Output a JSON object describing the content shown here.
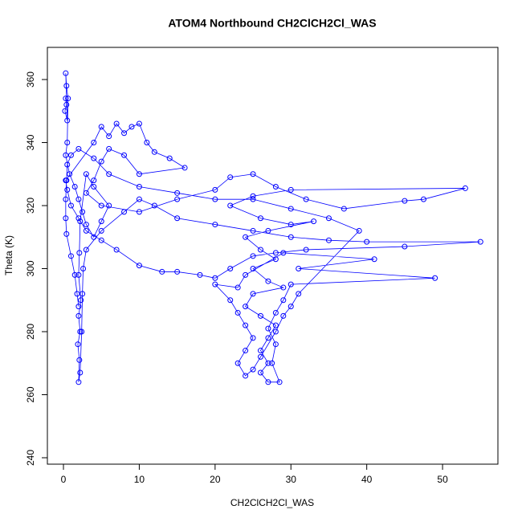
{
  "chart_data": {
    "type": "line",
    "markers": true,
    "title": "ATOM4 Northbound CH2ClCH2Cl_WAS",
    "xlabel": "CH2ClCH2Cl_WAS",
    "ylabel": "Theta (K)",
    "color": "#0000ff",
    "xlim": [
      -2.12,
      57.3
    ],
    "ylim": [
      237.96,
      370.2
    ],
    "xticks": [
      0,
      10,
      20,
      30,
      40,
      50
    ],
    "yticks": [
      240,
      260,
      280,
      300,
      320,
      340,
      360
    ],
    "x": [
      0.3,
      0.4,
      0.2,
      0.5,
      0.3,
      0.4,
      0.6,
      0.5,
      0.3,
      0.8,
      1.5,
      2,
      2.5,
      3,
      4,
      5,
      6,
      4,
      3,
      2.2,
      2.1,
      2,
      2.3,
      2,
      2.2,
      1.9,
      2.1,
      2.0,
      2.2,
      2.4,
      2.5,
      2.6,
      3,
      5,
      8,
      10,
      12,
      15,
      20,
      25,
      30,
      35,
      40,
      55,
      45,
      32,
      28,
      25,
      22,
      20,
      18,
      15,
      13,
      10,
      7,
      5,
      3,
      2,
      1,
      0.5,
      0.3,
      4,
      5,
      6,
      7,
      8,
      9,
      10,
      11,
      12,
      14,
      16,
      10,
      8,
      6,
      5,
      4,
      3,
      5,
      10,
      15,
      20,
      22,
      25,
      28,
      32,
      37,
      45,
      47.5,
      53,
      30,
      25,
      22,
      26,
      30,
      33,
      27,
      24,
      26,
      28,
      25,
      27,
      29,
      25,
      24,
      26,
      28,
      27,
      26,
      27,
      26,
      27,
      28.5,
      27.5,
      28,
      27,
      28,
      29,
      30,
      49,
      31,
      41,
      29,
      24,
      23,
      20,
      22,
      23,
      24,
      25,
      24,
      23,
      24,
      25,
      26,
      28,
      29,
      30,
      31,
      39,
      35,
      30,
      25,
      20,
      15,
      10,
      6,
      4,
      2,
      1,
      0.5,
      0.4,
      0.3,
      0.3,
      0.4,
      1,
      1.5,
      1.8,
      2
    ],
    "values": [
      354,
      352,
      350,
      347,
      362,
      358,
      354,
      340,
      336,
      330,
      326,
      322,
      318,
      314,
      310,
      315,
      320,
      326,
      330,
      315,
      305,
      298,
      290,
      285,
      280,
      276,
      271,
      264,
      267,
      280,
      292,
      300,
      306,
      312,
      318,
      322,
      320,
      316,
      314,
      312,
      310,
      309,
      308.5,
      308.5,
      307,
      306,
      305,
      304,
      300,
      297,
      298,
      299,
      299,
      301,
      306,
      309,
      312,
      316,
      320,
      325,
      328,
      340,
      345,
      342,
      346,
      343,
      345,
      346,
      340,
      337,
      335,
      332,
      330,
      336,
      338,
      334,
      328,
      324,
      320,
      318,
      322,
      325,
      329,
      330,
      326,
      322,
      319,
      321.5,
      322,
      325.5,
      325,
      323,
      320,
      316,
      314,
      315,
      312,
      310,
      306,
      303,
      300,
      296,
      294,
      292,
      288,
      285,
      282,
      278,
      274,
      270,
      267,
      264,
      264,
      270,
      276,
      281,
      286,
      290,
      295,
      297,
      300,
      303,
      305,
      298,
      294,
      295,
      290,
      286,
      282,
      278,
      274,
      270,
      266,
      268,
      272,
      280,
      285,
      288,
      292,
      312,
      316,
      319,
      322,
      322,
      324,
      326,
      330,
      335,
      338,
      336,
      333,
      328,
      322,
      316,
      311,
      304,
      298,
      292,
      288
    ]
  }
}
